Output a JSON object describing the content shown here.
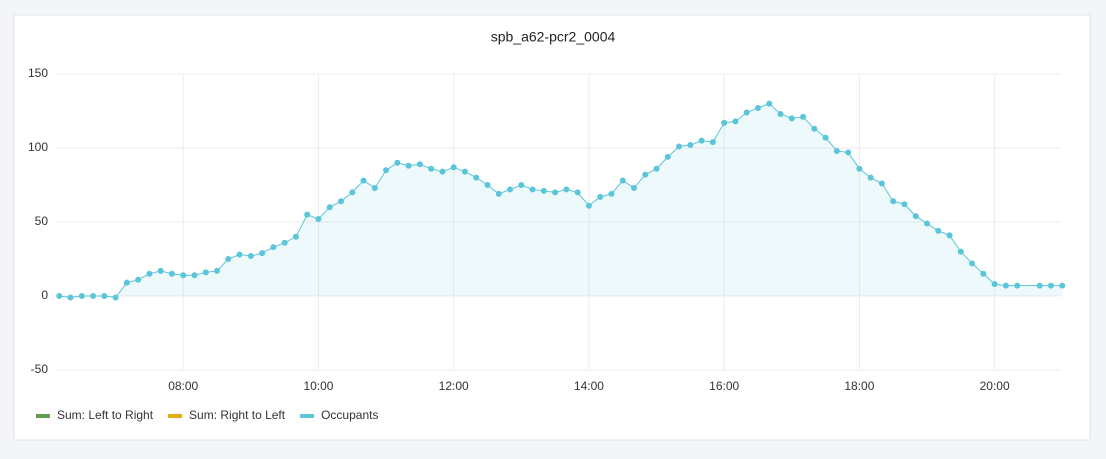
{
  "chart_data": {
    "type": "line",
    "title": "spb_a62-pcr2_0004",
    "x": [
      "06:10",
      "06:20",
      "06:30",
      "06:40",
      "06:50",
      "07:00",
      "07:10",
      "07:20",
      "07:30",
      "07:40",
      "07:50",
      "08:00",
      "08:10",
      "08:20",
      "08:30",
      "08:40",
      "08:50",
      "09:00",
      "09:10",
      "09:20",
      "09:30",
      "09:40",
      "09:50",
      "10:00",
      "10:10",
      "10:20",
      "10:30",
      "10:40",
      "10:50",
      "11:00",
      "11:10",
      "11:20",
      "11:30",
      "11:40",
      "11:50",
      "12:00",
      "12:10",
      "12:20",
      "12:30",
      "12:40",
      "12:50",
      "13:00",
      "13:10",
      "13:20",
      "13:30",
      "13:40",
      "13:50",
      "14:00",
      "14:10",
      "14:20",
      "14:30",
      "14:40",
      "14:50",
      "15:00",
      "15:10",
      "15:20",
      "15:30",
      "15:40",
      "15:50",
      "16:00",
      "16:10",
      "16:20",
      "16:30",
      "16:40",
      "16:50",
      "17:00",
      "17:10",
      "17:20",
      "17:30",
      "17:40",
      "17:50",
      "18:00",
      "18:10",
      "18:20",
      "18:30",
      "18:40",
      "18:50",
      "19:00",
      "19:10",
      "19:20",
      "19:30",
      "19:40",
      "19:50",
      "20:00",
      "20:10",
      "20:20",
      "20:40",
      "20:50",
      "21:00"
    ],
    "series": [
      {
        "name": "Sum: Left to Right",
        "color": "#629e51"
      },
      {
        "name": "Sum: Right to Left",
        "color": "#e5ac0e"
      },
      {
        "name": "Occupants",
        "color": "#5bc5d9",
        "values": [
          0,
          -1,
          0,
          0,
          0,
          -1,
          9,
          11,
          15,
          17,
          15,
          14,
          14,
          16,
          17,
          25,
          28,
          27,
          29,
          33,
          36,
          40,
          55,
          52,
          60,
          64,
          70,
          78,
          73,
          85,
          90,
          88,
          89,
          86,
          84,
          87,
          84,
          80,
          75,
          69,
          72,
          75,
          72,
          71,
          70,
          72,
          70,
          61,
          67,
          69,
          78,
          73,
          82,
          86,
          94,
          101,
          102,
          105,
          104,
          117,
          118,
          124,
          127,
          130,
          123,
          120,
          121,
          113,
          107,
          98,
          97,
          86,
          80,
          76,
          64,
          62,
          54,
          49,
          44,
          41,
          30,
          22,
          15,
          8,
          7,
          7,
          7,
          7,
          7
        ]
      }
    ],
    "xlim": [
      "06:08",
      "20:58"
    ],
    "xticks": [
      "08:00",
      "10:00",
      "12:00",
      "14:00",
      "16:00",
      "18:00",
      "20:00"
    ],
    "ylim": [
      -50,
      150
    ],
    "yticks": [
      -50,
      0,
      50,
      100,
      150
    ],
    "grid": true
  }
}
